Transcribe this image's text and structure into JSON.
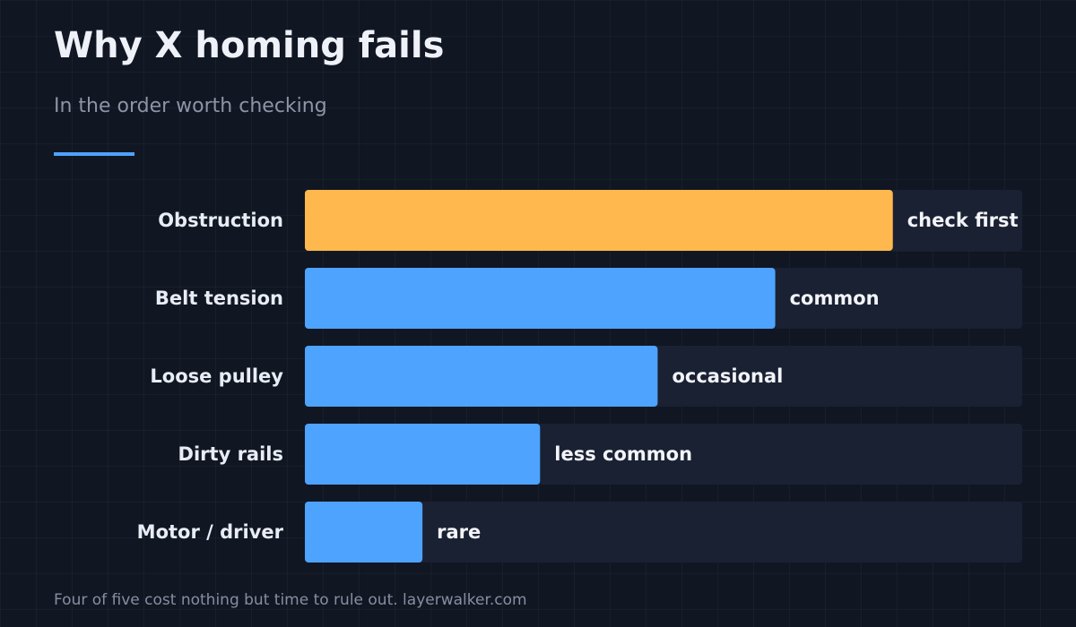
{
  "header": {
    "title": "Why X homing fails",
    "subtitle": "In the order worth checking"
  },
  "footer": {
    "note": "Four of five cost nothing but time to rule out. layerwalker.com"
  },
  "colors": {
    "background": "#111623",
    "track": "#1a2133",
    "highlight_bar": "#ffb84d",
    "bar": "#4da3ff",
    "accent_rule": "#4da3ff"
  },
  "chart_data": {
    "type": "bar",
    "orientation": "horizontal",
    "categories": [
      "Obstruction",
      "Belt tension",
      "Loose pulley",
      "Dirty rails",
      "Motor / driver"
    ],
    "values": [
      5,
      4,
      3,
      2,
      1
    ],
    "value_labels": [
      "check first",
      "common",
      "occasional",
      "less common",
      "rare"
    ],
    "xlim": [
      0,
      6.1
    ],
    "highlight_index": 0,
    "grid": false,
    "title": "Why X homing fails",
    "subtitle": "In the order worth checking"
  }
}
